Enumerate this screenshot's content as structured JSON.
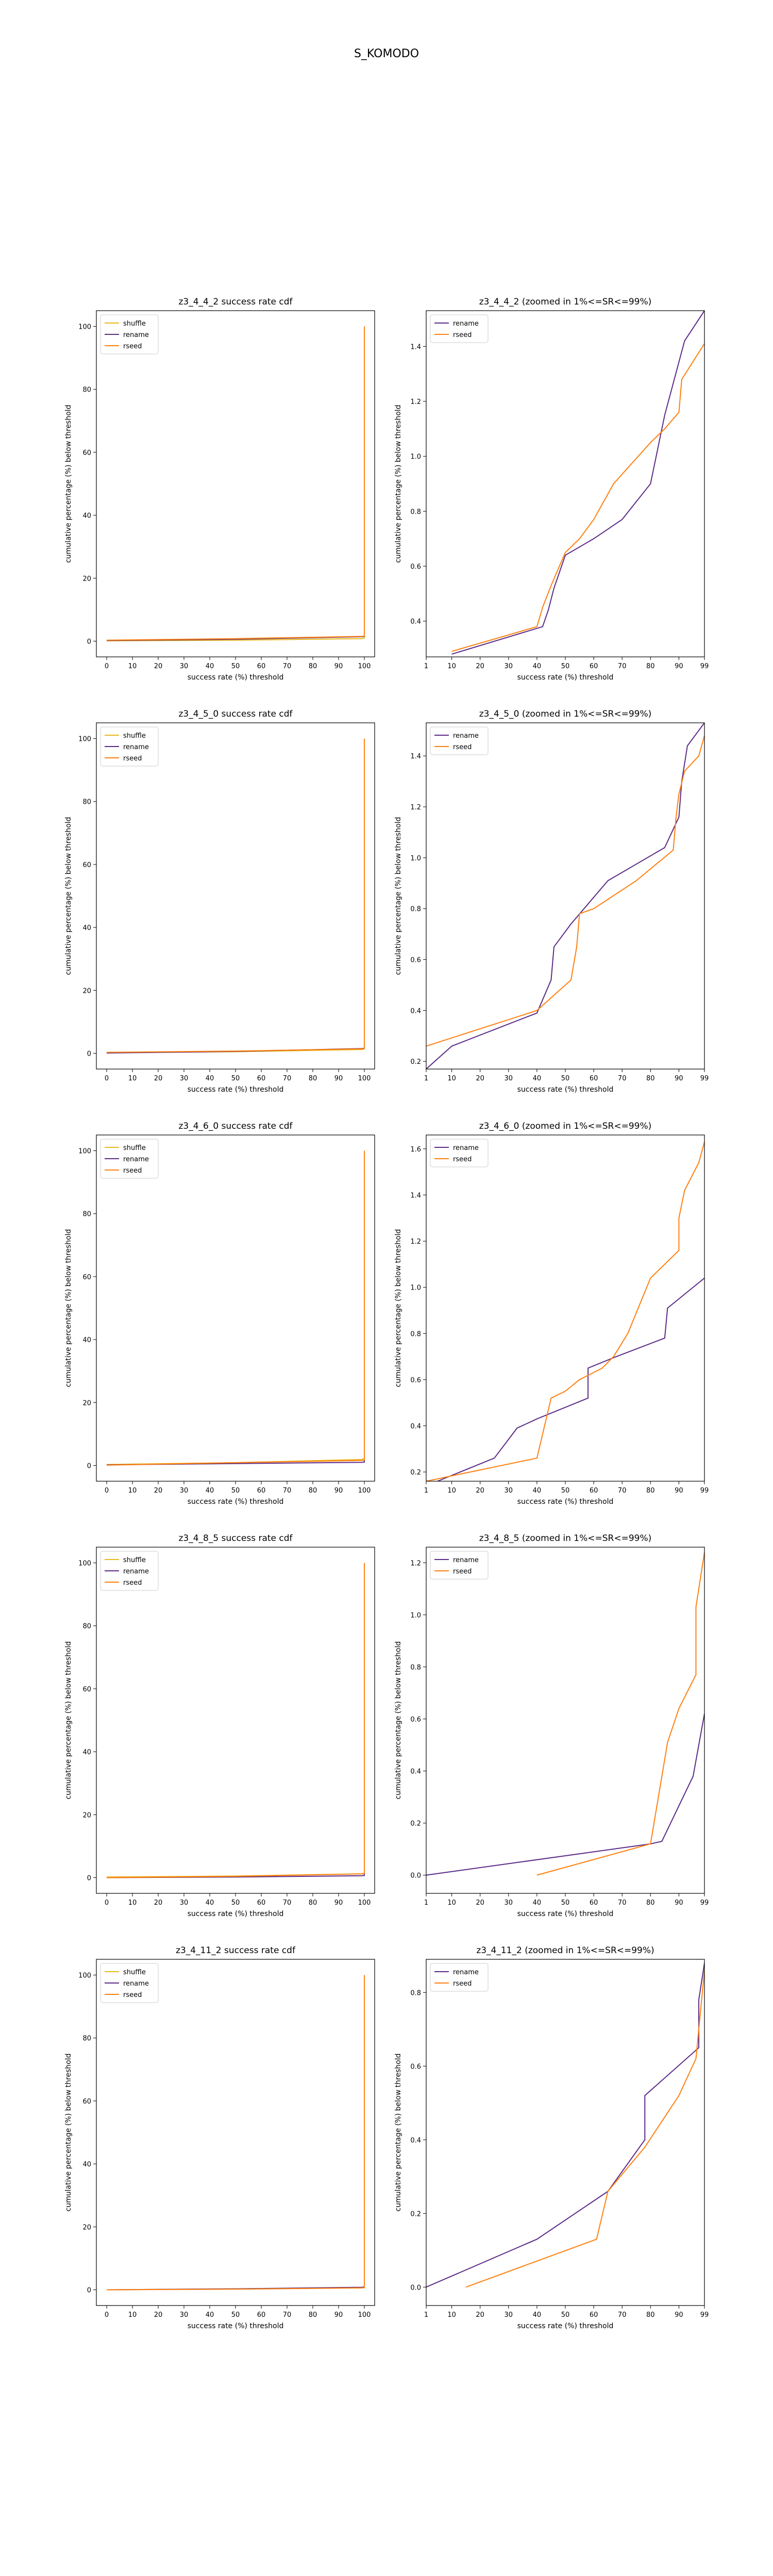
{
  "figure_title": "S_KOMODO",
  "colors": {
    "shuffle": "#e8b81a",
    "rename": "#5b2a86",
    "rseed": "#ff7f0e"
  },
  "chart_data": [
    {
      "type": "line",
      "title": "z3_4_4_2 success rate cdf",
      "xlabel": "success rate (%) threshold",
      "ylabel": "cumulative percentage (%) below threshold",
      "xlim": [
        -4,
        104
      ],
      "ylim": [
        -5,
        105
      ],
      "xticks": [
        0,
        10,
        20,
        30,
        40,
        50,
        60,
        70,
        80,
        90,
        100
      ],
      "yticks": [
        0,
        20,
        40,
        60,
        80,
        100
      ],
      "legend": "top-left",
      "series": [
        {
          "name": "shuffle",
          "x": [
            0,
            50,
            99,
            100,
            100
          ],
          "y": [
            0.1,
            0.3,
            0.8,
            1.0,
            100
          ]
        },
        {
          "name": "rename",
          "x": [
            0,
            50,
            99,
            100,
            100
          ],
          "y": [
            0.2,
            0.6,
            1.4,
            1.5,
            100
          ]
        },
        {
          "name": "rseed",
          "x": [
            0,
            50,
            99,
            100,
            100
          ],
          "y": [
            0.3,
            0.8,
            1.5,
            1.6,
            100
          ]
        }
      ]
    },
    {
      "type": "line",
      "title": "z3_4_4_2 (zoomed in 1%<=SR<=99%)",
      "xlabel": "success rate (%) threshold",
      "ylabel": "cumulative percentage (%) below threshold",
      "xlim": [
        1,
        99
      ],
      "ylim": [
        0.27,
        1.53
      ],
      "xticks": [
        1,
        10,
        20,
        30,
        40,
        50,
        60,
        70,
        80,
        90,
        99
      ],
      "yticks": [
        0.4,
        0.6,
        0.8,
        1.0,
        1.2,
        1.4
      ],
      "legend": "top-left",
      "series": [
        {
          "name": "rename",
          "x": [
            10,
            42,
            44,
            46,
            48,
            50,
            60,
            70,
            80,
            85,
            92,
            99
          ],
          "y": [
            0.28,
            0.38,
            0.44,
            0.52,
            0.58,
            0.64,
            0.7,
            0.77,
            0.9,
            1.15,
            1.42,
            1.53
          ]
        },
        {
          "name": "rseed",
          "x": [
            10,
            40,
            42,
            45,
            50,
            55,
            60,
            67,
            80,
            85,
            90,
            91,
            99
          ],
          "y": [
            0.29,
            0.38,
            0.45,
            0.53,
            0.65,
            0.7,
            0.77,
            0.9,
            1.05,
            1.1,
            1.16,
            1.28,
            1.41
          ]
        }
      ]
    },
    {
      "type": "line",
      "title": "z3_4_5_0 success rate cdf",
      "xlabel": "success rate (%) threshold",
      "ylabel": "cumulative percentage (%) below threshold",
      "xlim": [
        -4,
        104
      ],
      "ylim": [
        -5,
        105
      ],
      "xticks": [
        0,
        10,
        20,
        30,
        40,
        50,
        60,
        70,
        80,
        90,
        100
      ],
      "yticks": [
        0,
        20,
        40,
        60,
        80,
        100
      ],
      "legend": "top-left",
      "series": [
        {
          "name": "shuffle",
          "x": [
            0,
            50,
            99,
            100,
            100
          ],
          "y": [
            0.2,
            0.5,
            1.2,
            1.4,
            100
          ]
        },
        {
          "name": "rename",
          "x": [
            0,
            50,
            99,
            100,
            100
          ],
          "y": [
            0.1,
            0.6,
            1.5,
            1.6,
            100
          ]
        },
        {
          "name": "rseed",
          "x": [
            0,
            50,
            99,
            100,
            100
          ],
          "y": [
            0.3,
            0.7,
            1.4,
            1.5,
            100
          ]
        }
      ]
    },
    {
      "type": "line",
      "title": "z3_4_5_0 (zoomed in 1%<=SR<=99%)",
      "xlabel": "success rate (%) threshold",
      "ylabel": "cumulative percentage (%) below threshold",
      "xlim": [
        1,
        99
      ],
      "ylim": [
        0.17,
        1.53
      ],
      "xticks": [
        1,
        10,
        20,
        30,
        40,
        50,
        60,
        70,
        80,
        90,
        99
      ],
      "yticks": [
        0.2,
        0.4,
        0.6,
        0.8,
        1.0,
        1.2,
        1.4
      ],
      "legend": "top-left",
      "series": [
        {
          "name": "rename",
          "x": [
            1,
            10,
            40,
            45,
            46,
            52,
            65,
            85,
            90,
            91,
            93,
            99
          ],
          "y": [
            0.17,
            0.26,
            0.39,
            0.52,
            0.65,
            0.74,
            0.91,
            1.04,
            1.16,
            1.3,
            1.44,
            1.53
          ]
        },
        {
          "name": "rseed",
          "x": [
            1,
            40,
            52,
            54,
            55,
            60,
            75,
            88,
            89,
            90,
            92,
            97,
            99
          ],
          "y": [
            0.26,
            0.4,
            0.52,
            0.65,
            0.78,
            0.8,
            0.91,
            1.03,
            1.16,
            1.25,
            1.34,
            1.4,
            1.48
          ]
        }
      ]
    },
    {
      "type": "line",
      "title": "z3_4_6_0 success rate cdf",
      "xlabel": "success rate (%) threshold",
      "ylabel": "cumulative percentage (%) below threshold",
      "xlim": [
        -4,
        104
      ],
      "ylim": [
        -5,
        105
      ],
      "xticks": [
        0,
        10,
        20,
        30,
        40,
        50,
        60,
        70,
        80,
        90,
        100
      ],
      "yticks": [
        0,
        20,
        40,
        60,
        80,
        100
      ],
      "legend": "top-left",
      "series": [
        {
          "name": "shuffle",
          "x": [
            0,
            50,
            99,
            100,
            100
          ],
          "y": [
            0.3,
            0.9,
            1.9,
            2.2,
            100
          ]
        },
        {
          "name": "rename",
          "x": [
            0,
            50,
            99,
            100,
            100
          ],
          "y": [
            0.2,
            0.6,
            1.0,
            1.1,
            100
          ]
        },
        {
          "name": "rseed",
          "x": [
            0,
            50,
            99,
            100,
            100
          ],
          "y": [
            0.1,
            0.9,
            1.6,
            1.7,
            100
          ]
        }
      ]
    },
    {
      "type": "line",
      "title": "z3_4_6_0 (zoomed in 1%<=SR<=99%)",
      "xlabel": "success rate (%) threshold",
      "ylabel": "cumulative percentage (%) below threshold",
      "xlim": [
        1,
        99
      ],
      "ylim": [
        0.16,
        1.66
      ],
      "xticks": [
        1,
        10,
        20,
        30,
        40,
        50,
        60,
        70,
        80,
        90,
        99
      ],
      "yticks": [
        0.2,
        0.4,
        0.6,
        0.8,
        1.0,
        1.2,
        1.4,
        1.6
      ],
      "legend": "top-left",
      "series": [
        {
          "name": "rename",
          "x": [
            5,
            25,
            33,
            40,
            58,
            58,
            68,
            85,
            86,
            99
          ],
          "y": [
            0.16,
            0.26,
            0.39,
            0.43,
            0.52,
            0.65,
            0.7,
            0.78,
            0.91,
            1.04
          ]
        },
        {
          "name": "rseed",
          "x": [
            1,
            40,
            45,
            50,
            55,
            63,
            67,
            72,
            80,
            90,
            90,
            92,
            97,
            99
          ],
          "y": [
            0.16,
            0.26,
            0.52,
            0.55,
            0.6,
            0.65,
            0.7,
            0.8,
            1.04,
            1.16,
            1.3,
            1.42,
            1.54,
            1.63
          ]
        }
      ]
    },
    {
      "type": "line",
      "title": "z3_4_8_5 success rate cdf",
      "xlabel": "success rate (%) threshold",
      "ylabel": "cumulative percentage (%) below threshold",
      "xlim": [
        -4,
        104
      ],
      "ylim": [
        -5,
        105
      ],
      "xticks": [
        0,
        10,
        20,
        30,
        40,
        50,
        60,
        70,
        80,
        90,
        100
      ],
      "yticks": [
        0,
        20,
        40,
        60,
        80,
        100
      ],
      "legend": "top-left",
      "series": [
        {
          "name": "shuffle",
          "x": [
            0,
            50,
            99,
            100,
            100
          ],
          "y": [
            0.2,
            0.5,
            1.2,
            1.4,
            100
          ]
        },
        {
          "name": "rename",
          "x": [
            0,
            50,
            99,
            100,
            100
          ],
          "y": [
            0.0,
            0.2,
            0.6,
            0.7,
            100
          ]
        },
        {
          "name": "rseed",
          "x": [
            0,
            50,
            99,
            100,
            100
          ],
          "y": [
            0.0,
            0.4,
            1.2,
            1.3,
            100
          ]
        }
      ]
    },
    {
      "type": "line",
      "title": "z3_4_8_5 (zoomed in 1%<=SR<=99%)",
      "xlabel": "success rate (%) threshold",
      "ylabel": "cumulative percentage (%) below threshold",
      "xlim": [
        1,
        99
      ],
      "ylim": [
        -0.07,
        1.26
      ],
      "xticks": [
        1,
        10,
        20,
        30,
        40,
        50,
        60,
        70,
        80,
        90,
        99
      ],
      "yticks": [
        0.0,
        0.2,
        0.4,
        0.6,
        0.8,
        1.0,
        1.2
      ],
      "legend": "top-left",
      "series": [
        {
          "name": "rename",
          "x": [
            1,
            80,
            84,
            95,
            99
          ],
          "y": [
            0.0,
            0.12,
            0.13,
            0.38,
            0.62
          ]
        },
        {
          "name": "rseed",
          "x": [
            40,
            80,
            86,
            90,
            96,
            96,
            99
          ],
          "y": [
            0.0,
            0.12,
            0.51,
            0.64,
            0.77,
            1.03,
            1.24
          ]
        }
      ]
    },
    {
      "type": "line",
      "title": "z3_4_11_2 success rate cdf",
      "xlabel": "success rate (%) threshold",
      "ylabel": "cumulative percentage (%) below threshold",
      "xlim": [
        -4,
        104
      ],
      "ylim": [
        -5,
        105
      ],
      "xticks": [
        0,
        10,
        20,
        30,
        40,
        50,
        60,
        70,
        80,
        90,
        100
      ],
      "yticks": [
        0,
        20,
        40,
        60,
        80,
        100
      ],
      "legend": "top-left",
      "series": [
        {
          "name": "shuffle",
          "x": [
            0,
            50,
            99,
            100,
            100
          ],
          "y": [
            0.0,
            0.3,
            0.6,
            0.7,
            100
          ]
        },
        {
          "name": "rename",
          "x": [
            0,
            50,
            99,
            100,
            100
          ],
          "y": [
            0.0,
            0.3,
            0.8,
            0.9,
            100
          ]
        },
        {
          "name": "rseed",
          "x": [
            0,
            50,
            99,
            100,
            100
          ],
          "y": [
            0.0,
            0.2,
            0.6,
            0.7,
            100
          ]
        }
      ]
    },
    {
      "type": "line",
      "title": "z3_4_11_2 (zoomed in 1%<=SR<=99%)",
      "xlabel": "success rate (%) threshold",
      "ylabel": "cumulative percentage (%) below threshold",
      "xlim": [
        1,
        99
      ],
      "ylim": [
        -0.05,
        0.89
      ],
      "xticks": [
        1,
        10,
        20,
        30,
        40,
        50,
        60,
        70,
        80,
        90,
        99
      ],
      "yticks": [
        0.0,
        0.2,
        0.4,
        0.6,
        0.8
      ],
      "legend": "top-left",
      "series": [
        {
          "name": "rename",
          "x": [
            1,
            40,
            65,
            78,
            78,
            97,
            97,
            99
          ],
          "y": [
            0.0,
            0.13,
            0.26,
            0.4,
            0.52,
            0.65,
            0.78,
            0.88
          ]
        },
        {
          "name": "rseed",
          "x": [
            15,
            61,
            65,
            78,
            90,
            96,
            97,
            99
          ],
          "y": [
            0.0,
            0.13,
            0.26,
            0.38,
            0.52,
            0.62,
            0.7,
            0.86
          ]
        }
      ]
    }
  ]
}
